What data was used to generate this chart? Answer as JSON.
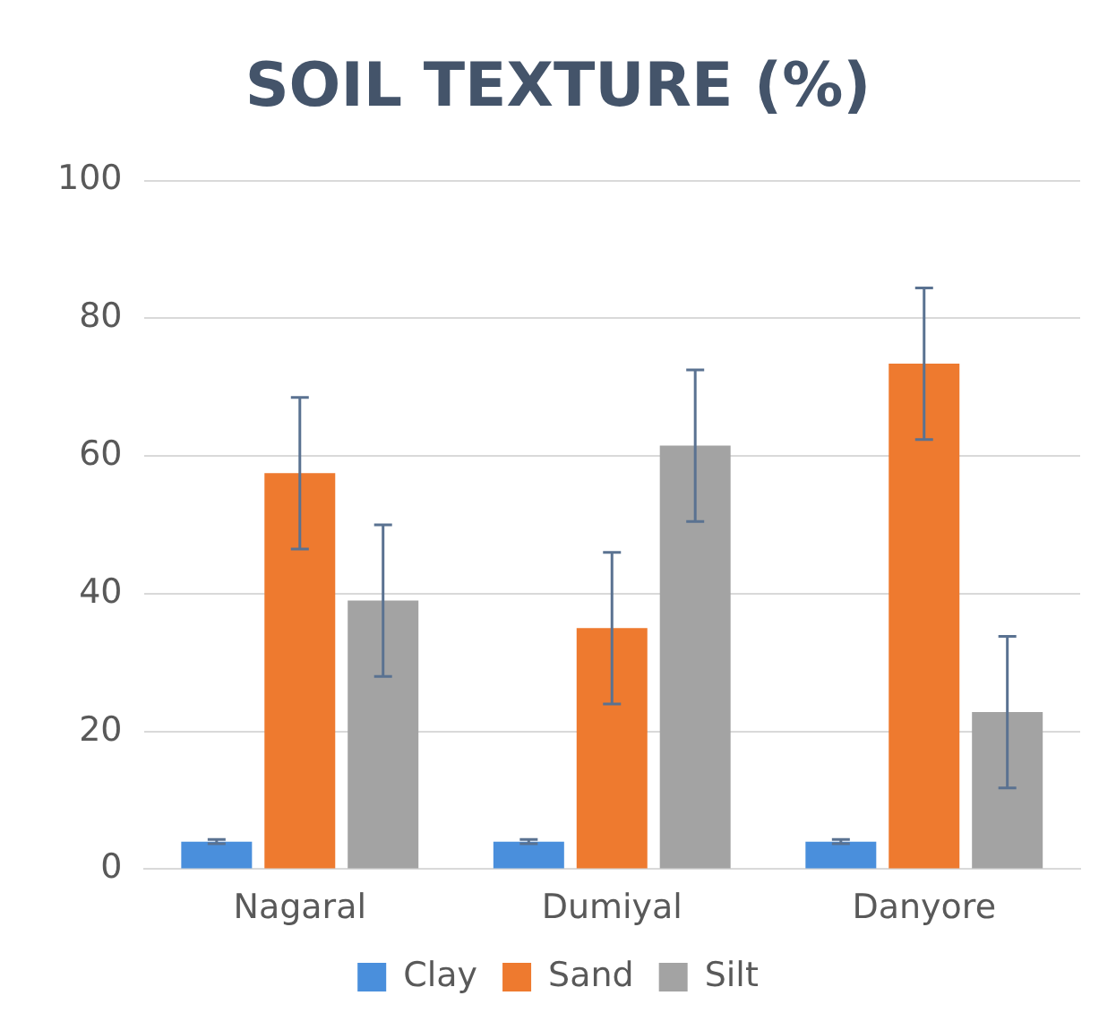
{
  "chart_data": {
    "type": "bar",
    "title": "SOIL TEXTURE (%)",
    "categories": [
      "Nagaral",
      "Dumiyal",
      "Danyore"
    ],
    "series": [
      {
        "name": "Clay",
        "color": "#4a8fdc",
        "values": [
          4,
          4,
          4
        ],
        "errors": [
          0.3,
          0.3,
          0.3
        ]
      },
      {
        "name": "Sand",
        "color": "#ee7a2f",
        "values": [
          57.5,
          35,
          73.4
        ],
        "errors": [
          11,
          11,
          11
        ]
      },
      {
        "name": "Silt",
        "color": "#a3a3a3",
        "values": [
          39,
          61.5,
          22.8
        ],
        "errors": [
          11,
          11,
          11
        ]
      }
    ],
    "ylim": [
      0,
      100
    ],
    "yticks": [
      0,
      20,
      40,
      60,
      80,
      100
    ],
    "grid": "y",
    "legend": "bottom"
  }
}
